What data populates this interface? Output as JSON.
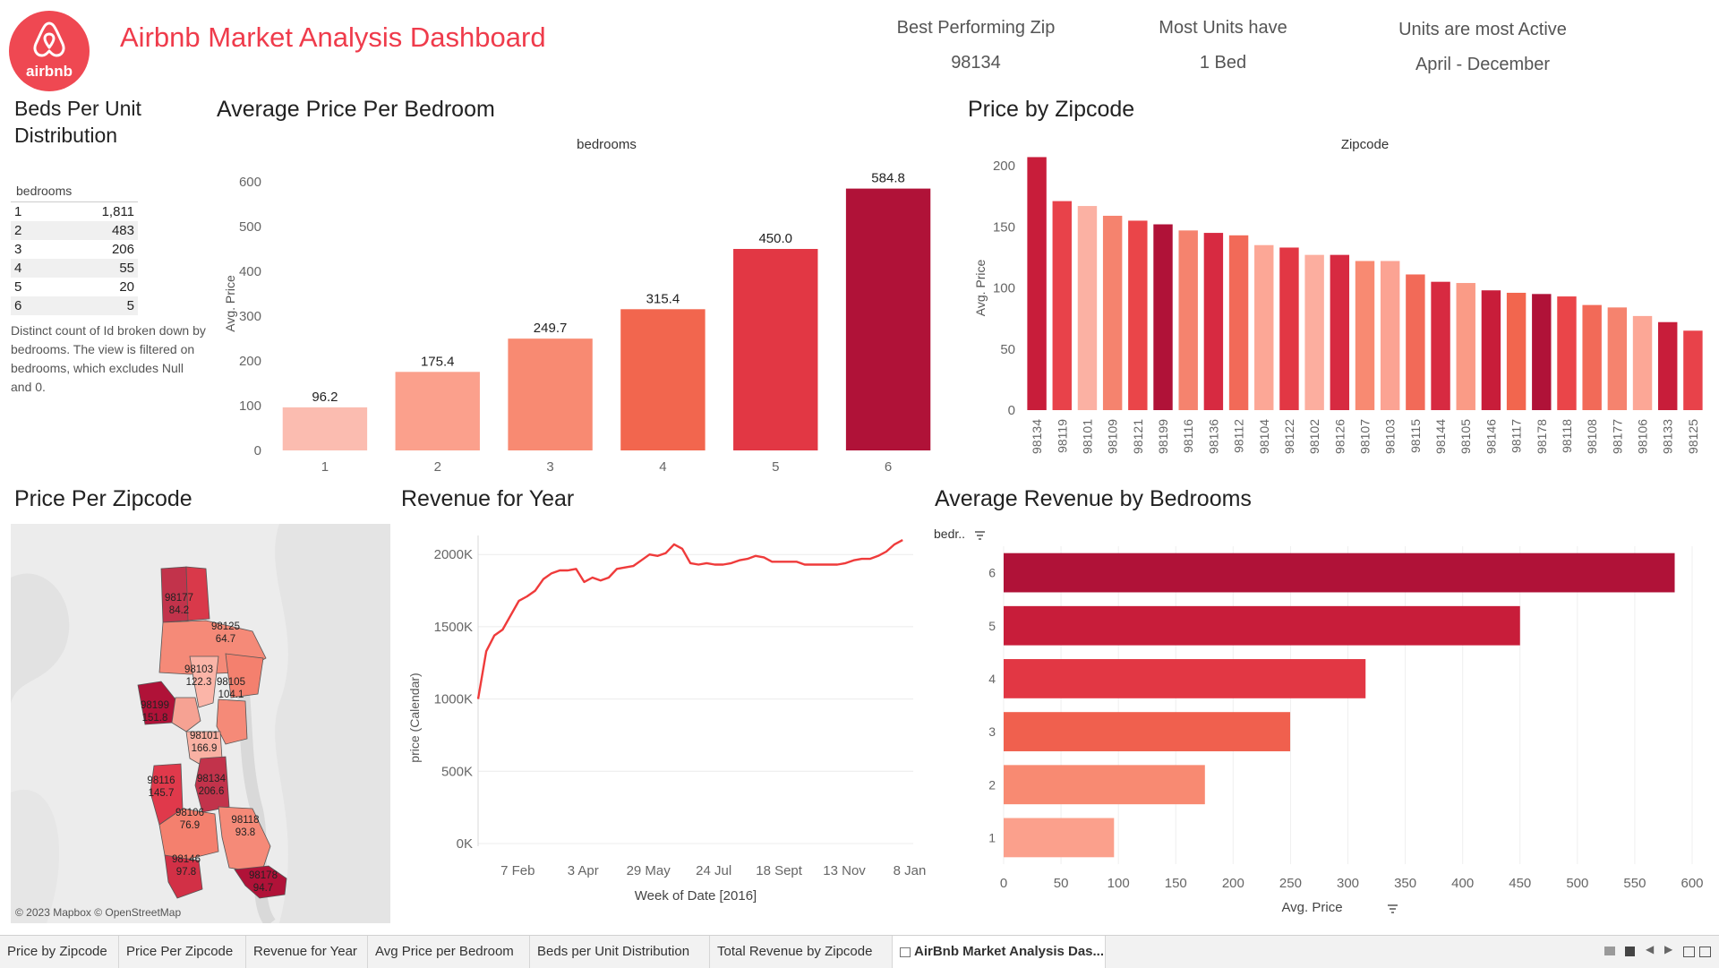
{
  "header": {
    "logo_text": "airbnb",
    "title": "Airbnb Market Analysis Dashboard",
    "kpis": [
      {
        "label": "Best Performing Zip",
        "value": "98134"
      },
      {
        "label": "Most Units have",
        "value": "1 Bed"
      },
      {
        "label": "Units are most Active",
        "value": "April - December"
      }
    ]
  },
  "beds_panel": {
    "title": "Beds Per Unit Distribution",
    "column_header": "bedrooms",
    "rows": [
      {
        "bedrooms": "1",
        "count": "1,811"
      },
      {
        "bedrooms": "2",
        "count": "483"
      },
      {
        "bedrooms": "3",
        "count": "206"
      },
      {
        "bedrooms": "4",
        "count": "55"
      },
      {
        "bedrooms": "5",
        "count": "20"
      },
      {
        "bedrooms": "6",
        "count": "5"
      }
    ],
    "note": "Distinct count of Id broken down by bedrooms. The view is filtered on bedrooms, which excludes Null and 0."
  },
  "map_panel": {
    "title": "Price Per Zipcode",
    "attribution": "© 2023 Mapbox © OpenStreetMap",
    "labels": [
      {
        "zip": "98177",
        "value": "84.2"
      },
      {
        "zip": "98125",
        "value": "64.7"
      },
      {
        "zip": "98103",
        "value": "122.3"
      },
      {
        "zip": "98105",
        "value": "104.1"
      },
      {
        "zip": "98199",
        "value": "151.8"
      },
      {
        "zip": "98101",
        "value": "166.9"
      },
      {
        "zip": "98116",
        "value": "145.7"
      },
      {
        "zip": "98134",
        "value": "206.6"
      },
      {
        "zip": "98106",
        "value": "76.9"
      },
      {
        "zip": "98118",
        "value": "93.8"
      },
      {
        "zip": "98146",
        "value": "97.8"
      },
      {
        "zip": "98178",
        "value": "94.7"
      }
    ]
  },
  "tabs": [
    {
      "label": "Price by Zipcode"
    },
    {
      "label": "Price Per Zipcode"
    },
    {
      "label": "Revenue for Year"
    },
    {
      "label": "Avg Price per Bedroom"
    },
    {
      "label": "Beds per Unit Distribution"
    },
    {
      "label": "Total Revenue by Zipcode"
    },
    {
      "label": "AirBnb Market Analysis Das..."
    }
  ],
  "colors": {
    "accent": "#ef4852",
    "line": "#ef3b3b"
  },
  "chart_data": [
    {
      "id": "avg_price_per_bedroom",
      "type": "bar",
      "title": "Average Price Per Bedroom",
      "header": "bedrooms",
      "ylabel": "Avg. Price",
      "categories": [
        "1",
        "2",
        "3",
        "4",
        "5",
        "6"
      ],
      "values": [
        96.2,
        175.4,
        249.7,
        315.4,
        450.0,
        584.8
      ],
      "value_labels": [
        "96.2",
        "175.4",
        "249.7",
        "315.4",
        "450.0",
        "584.8"
      ],
      "colors": [
        "#fbbcb0",
        "#fba08c",
        "#f88a72",
        "#f2664e",
        "#e23744",
        "#b01238"
      ],
      "ylim": [
        0,
        600
      ],
      "yticks": [
        0,
        100,
        200,
        300,
        400,
        500,
        600
      ],
      "grid": false
    },
    {
      "id": "price_by_zipcode",
      "type": "bar",
      "title": "Price by Zipcode",
      "header": "Zipcode",
      "ylabel": "Avg. Price",
      "categories": [
        "98134",
        "98119",
        "98101",
        "98109",
        "98121",
        "98199",
        "98116",
        "98136",
        "98112",
        "98104",
        "98122",
        "98102",
        "98126",
        "98107",
        "98103",
        "98115",
        "98144",
        "98105",
        "98146",
        "98117",
        "98178",
        "98118",
        "98108",
        "98177",
        "98106",
        "98133",
        "98125"
      ],
      "values": [
        207,
        171,
        167,
        159,
        155,
        152,
        147,
        145,
        143,
        135,
        133,
        127,
        127,
        122,
        122,
        111,
        105,
        104,
        98,
        96,
        95,
        93,
        86,
        84,
        77,
        72,
        65
      ],
      "colors": [
        "#c81d3a",
        "#e8424a",
        "#fbb1a3",
        "#f5836e",
        "#ea4549",
        "#b01238",
        "#f5836e",
        "#d72a41",
        "#f26a58",
        "#fca796",
        "#e23744",
        "#fcae9f",
        "#d72a41",
        "#f88a72",
        "#fba393",
        "#f26a58",
        "#d72a41",
        "#fa9b86",
        "#c81d3a",
        "#f2664e",
        "#b01238",
        "#ea4549",
        "#f26a58",
        "#f5836e",
        "#fca796",
        "#c81d3a",
        "#e8424a"
      ],
      "ylim": [
        0,
        200
      ],
      "yticks": [
        0,
        50,
        100,
        150,
        200
      ],
      "grid": false
    },
    {
      "id": "revenue_for_year",
      "type": "line",
      "title": "Revenue for Year",
      "xlabel": "Week of Date [2016]",
      "ylabel": "price (Calendar)",
      "x": [
        "2016-01-04",
        "2016-01-11",
        "2016-01-18",
        "2016-01-25",
        "2016-02-01",
        "2016-02-08",
        "2016-02-15",
        "2016-02-22",
        "2016-02-29",
        "2016-03-07",
        "2016-03-14",
        "2016-03-21",
        "2016-03-28",
        "2016-04-04",
        "2016-04-11",
        "2016-04-18",
        "2016-04-25",
        "2016-05-02",
        "2016-05-09",
        "2016-05-16",
        "2016-05-23",
        "2016-05-30",
        "2016-06-06",
        "2016-06-13",
        "2016-06-20",
        "2016-06-27",
        "2016-07-04",
        "2016-07-11",
        "2016-07-18",
        "2016-07-25",
        "2016-08-01",
        "2016-08-08",
        "2016-08-15",
        "2016-08-22",
        "2016-08-29",
        "2016-09-05",
        "2016-09-12",
        "2016-09-19",
        "2016-09-26",
        "2016-10-03",
        "2016-10-10",
        "2016-10-17",
        "2016-10-24",
        "2016-10-31",
        "2016-11-07",
        "2016-11-14",
        "2016-11-21",
        "2016-11-28",
        "2016-12-05",
        "2016-12-12",
        "2016-12-19",
        "2016-12-26",
        "2017-01-02"
      ],
      "y": [
        1000,
        1330,
        1440,
        1480,
        1580,
        1680,
        1710,
        1750,
        1830,
        1870,
        1890,
        1890,
        1900,
        1810,
        1840,
        1820,
        1840,
        1900,
        1910,
        1920,
        1960,
        2000,
        1990,
        2010,
        2070,
        2040,
        1940,
        1930,
        1940,
        1930,
        1930,
        1940,
        1960,
        1970,
        1990,
        1980,
        1950,
        1950,
        1950,
        1950,
        1930,
        1930,
        1930,
        1930,
        1930,
        1940,
        1960,
        1970,
        1970,
        1990,
        2020,
        2070,
        2100
      ],
      "xtick_labels": [
        {
          "date": "2016-02-07",
          "label": "7 Feb"
        },
        {
          "date": "2016-04-03",
          "label": "3 Apr"
        },
        {
          "date": "2016-05-29",
          "label": "29 May"
        },
        {
          "date": "2016-07-24",
          "label": "24 Jul"
        },
        {
          "date": "2016-09-18",
          "label": "18 Sept"
        },
        {
          "date": "2016-11-13",
          "label": "13 Nov"
        },
        {
          "date": "2017-01-08",
          "label": "8 Jan"
        }
      ],
      "yticks": [
        0,
        500,
        1000,
        1500,
        2000
      ],
      "ytick_labels": [
        "0K",
        "500K",
        "1000K",
        "1500K",
        "2000K"
      ],
      "ylim": [
        0,
        2150
      ],
      "grid": true,
      "color": "#ef3b3b"
    },
    {
      "id": "avg_revenue_by_bedrooms",
      "type": "bar",
      "orientation": "horizontal",
      "title": "Average Revenue by Bedrooms",
      "header": "bedr..",
      "xlabel": "Avg. Price",
      "categories": [
        "6",
        "5",
        "4",
        "3",
        "2",
        "1"
      ],
      "values": [
        584.8,
        450.0,
        315.4,
        249.7,
        175.4,
        96.2
      ],
      "colors": [
        "#b01238",
        "#c81d3a",
        "#e23744",
        "#f0604e",
        "#f88a72",
        "#fba08c"
      ],
      "xlim": [
        0,
        600
      ],
      "xticks": [
        0,
        50,
        100,
        150,
        200,
        250,
        300,
        350,
        400,
        450,
        500,
        550,
        600
      ],
      "grid": true
    }
  ]
}
